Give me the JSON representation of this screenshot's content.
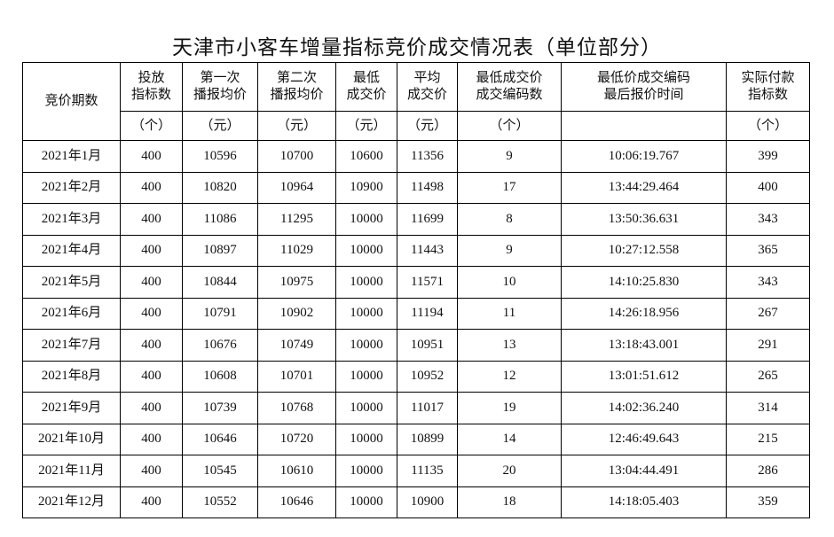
{
  "title": "天津市小客车增量指标竞价成交情况表（单位部分）",
  "table": {
    "headers": [
      {
        "lines": [
          "竞价期数"
        ]
      },
      {
        "lines": [
          "投放",
          "指标数"
        ],
        "unit": "（个）"
      },
      {
        "lines": [
          "第一次",
          "播报均价"
        ],
        "unit": "（元）"
      },
      {
        "lines": [
          "第二次",
          "播报均价"
        ],
        "unit": "（元）"
      },
      {
        "lines": [
          "最低",
          "成交价"
        ],
        "unit": "（元）"
      },
      {
        "lines": [
          "平均",
          "成交价"
        ],
        "unit": "（元）"
      },
      {
        "lines": [
          "最低成交价",
          "成交编码数"
        ],
        "unit": "（个）"
      },
      {
        "lines": [
          "最低价成交编码",
          "最后报价时间"
        ]
      },
      {
        "lines": [
          "实际付款",
          "指标数"
        ],
        "unit": "（个）"
      }
    ],
    "rows": [
      [
        "2021年1月",
        400,
        10596,
        10700,
        10600,
        11356,
        9,
        "10:06:19.767",
        399
      ],
      [
        "2021年2月",
        400,
        10820,
        10964,
        10900,
        11498,
        17,
        "13:44:29.464",
        400
      ],
      [
        "2021年3月",
        400,
        11086,
        11295,
        10000,
        11699,
        8,
        "13:50:36.631",
        343
      ],
      [
        "2021年4月",
        400,
        10897,
        11029,
        10000,
        11443,
        9,
        "10:27:12.558",
        365
      ],
      [
        "2021年5月",
        400,
        10844,
        10975,
        10000,
        11571,
        10,
        "14:10:25.830",
        343
      ],
      [
        "2021年6月",
        400,
        10791,
        10902,
        10000,
        11194,
        11,
        "14:26:18.956",
        267
      ],
      [
        "2021年7月",
        400,
        10676,
        10749,
        10000,
        10951,
        13,
        "13:18:43.001",
        291
      ],
      [
        "2021年8月",
        400,
        10608,
        10701,
        10000,
        10952,
        12,
        "13:01:51.612",
        265
      ],
      [
        "2021年9月",
        400,
        10739,
        10768,
        10000,
        11017,
        19,
        "14:02:36.240",
        314
      ],
      [
        "2021年10月",
        400,
        10646,
        10720,
        10000,
        10899,
        14,
        "12:46:49.643",
        215
      ],
      [
        "2021年11月",
        400,
        10545,
        10610,
        10000,
        11135,
        20,
        "13:04:44.491",
        286
      ],
      [
        "2021年12月",
        400,
        10552,
        10646,
        10000,
        10900,
        18,
        "14:18:05.403",
        359
      ]
    ]
  }
}
